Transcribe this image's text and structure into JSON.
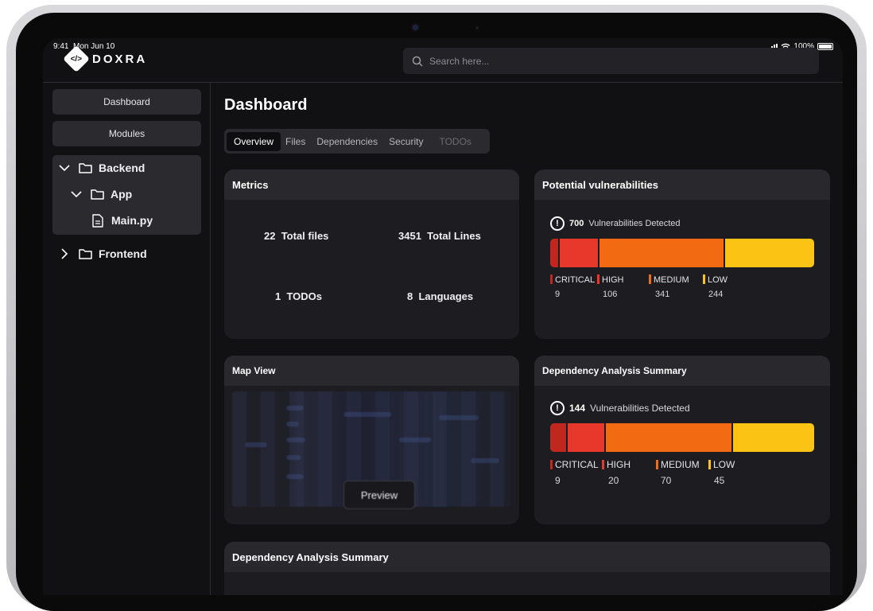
{
  "status": {
    "time": "9:41",
    "date": "Mon Jun 10",
    "battery": "100%"
  },
  "brand": {
    "name": "DOXRA"
  },
  "search": {
    "placeholder": "Search here..."
  },
  "sidebar": {
    "buttons": [
      {
        "label": "Dashboard"
      },
      {
        "label": "Modules"
      }
    ],
    "tree": [
      {
        "label": "Backend",
        "expanded": true,
        "icon": "folder-icon"
      },
      {
        "label": "App",
        "expanded": true,
        "icon": "folder-icon"
      },
      {
        "label": "Main.py",
        "icon": "file-icon"
      },
      {
        "label": "Frontend",
        "expanded": false,
        "icon": "folder-icon"
      }
    ]
  },
  "main": {
    "title": "Dashboard",
    "tabs": [
      {
        "label": "Overview",
        "active": true
      },
      {
        "label": "Files"
      },
      {
        "label": "Dependencies"
      },
      {
        "label": "Security"
      },
      {
        "label": "TODOs",
        "disabled": true
      }
    ]
  },
  "metrics": {
    "title": "Metrics",
    "items": [
      {
        "value": "22",
        "label": "Total files"
      },
      {
        "value": "3451",
        "label": "Total Lines"
      },
      {
        "value": "1",
        "label": "TODOs"
      },
      {
        "value": "8",
        "label": "Languages"
      }
    ]
  },
  "vulnerabilities": {
    "title": "Potential vulnerabilities",
    "total": "700",
    "total_label": "Vulnerabilities Detected",
    "levels": [
      {
        "label": "CRITICAL",
        "value": "9",
        "color": "#c0281f"
      },
      {
        "label": "HIGH",
        "value": "106",
        "color": "#e8372b"
      },
      {
        "label": "MEDIUM",
        "value": "341",
        "color": "#f26a11"
      },
      {
        "label": "LOW",
        "value": "244",
        "color": "#fbc414"
      }
    ]
  },
  "map": {
    "title": "Map View",
    "button": "Preview"
  },
  "dependency": {
    "title": "Dependency Analysis Summary",
    "total": "144",
    "total_label": "Vulnerabilities Detected",
    "levels": [
      {
        "label": "CRITICAL",
        "value": "9",
        "color": "#c0281f"
      },
      {
        "label": "HIGH",
        "value": "20",
        "color": "#e8372b"
      },
      {
        "label": "MEDIUM",
        "value": "70",
        "color": "#f26a11"
      },
      {
        "label": "LOW",
        "value": "45",
        "color": "#fbc414"
      }
    ]
  },
  "dependency2": {
    "title": "Dependency Analysis Summary"
  }
}
